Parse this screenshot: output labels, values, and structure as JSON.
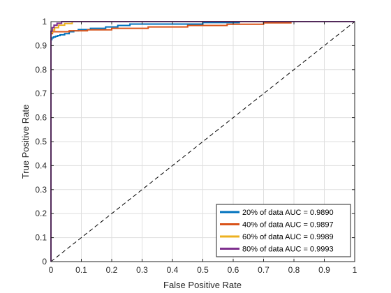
{
  "chart_data": {
    "type": "line",
    "xlabel": "False Positive Rate",
    "ylabel": "True Positive Rate",
    "xlim": [
      0,
      1
    ],
    "ylim": [
      0,
      1
    ],
    "x_ticks": [
      "0",
      "0.1",
      "0.2",
      "0.3",
      "0.4",
      "0.5",
      "0.6",
      "0.7",
      "0.8",
      "0.9",
      "1"
    ],
    "y_ticks": [
      "0",
      "0.1",
      "0.2",
      "0.3",
      "0.4",
      "0.5",
      "0.6",
      "0.7",
      "0.8",
      "0.9",
      "1"
    ],
    "grid": true,
    "legend_position": "bottom-right",
    "reference_line": {
      "style": "dashed",
      "color": "#000000",
      "x": [
        0,
        1
      ],
      "y": [
        0,
        1
      ]
    },
    "series": [
      {
        "name": "20% of data AUC = 0.9890",
        "color": "#0072BD",
        "x": [
          0,
          0,
          0.003,
          0.003,
          0.008,
          0.008,
          0.015,
          0.015,
          0.022,
          0.022,
          0.03,
          0.03,
          0.045,
          0.045,
          0.06,
          0.06,
          0.075,
          0.075,
          0.09,
          0.09,
          0.13,
          0.13,
          0.18,
          0.18,
          0.22,
          0.22,
          0.26,
          0.26,
          0.5,
          0.5,
          0.62,
          0.62,
          1
        ],
        "y": [
          0,
          0.925,
          0.925,
          0.932,
          0.932,
          0.936,
          0.936,
          0.939,
          0.939,
          0.942,
          0.942,
          0.945,
          0.945,
          0.95,
          0.95,
          0.958,
          0.958,
          0.962,
          0.962,
          0.967,
          0.967,
          0.972,
          0.972,
          0.978,
          0.978,
          0.984,
          0.984,
          0.99,
          0.99,
          0.996,
          0.996,
          1,
          1
        ]
      },
      {
        "name": "40% of data AUC = 0.9897",
        "color": "#D95319",
        "x": [
          0,
          0,
          0.005,
          0.005,
          0.06,
          0.06,
          0.12,
          0.12,
          0.2,
          0.2,
          0.32,
          0.32,
          0.45,
          0.45,
          0.58,
          0.58,
          0.7,
          0.7,
          0.79,
          0.79,
          1
        ],
        "y": [
          0,
          0.95,
          0.95,
          0.958,
          0.958,
          0.962,
          0.962,
          0.966,
          0.966,
          0.972,
          0.972,
          0.978,
          0.978,
          0.984,
          0.984,
          0.989,
          0.989,
          0.995,
          0.995,
          1,
          1
        ]
      },
      {
        "name": "60% of data AUC = 0.9989",
        "color": "#EDB120",
        "x": [
          0,
          0,
          0.005,
          0.005,
          0.012,
          0.012,
          0.025,
          0.025,
          0.045,
          0.045,
          0.07,
          0.07,
          1
        ],
        "y": [
          0,
          0.955,
          0.955,
          0.965,
          0.965,
          0.975,
          0.975,
          0.985,
          0.985,
          0.992,
          0.992,
          1,
          1
        ]
      },
      {
        "name": "80% of data AUC = 0.9993",
        "color": "#7E2F8E",
        "x": [
          0,
          0,
          0.004,
          0.004,
          0.01,
          0.01,
          0.02,
          0.02,
          0.035,
          0.035,
          1
        ],
        "y": [
          0,
          0.96,
          0.96,
          0.975,
          0.975,
          0.985,
          0.985,
          0.993,
          0.993,
          1,
          1
        ]
      }
    ]
  }
}
